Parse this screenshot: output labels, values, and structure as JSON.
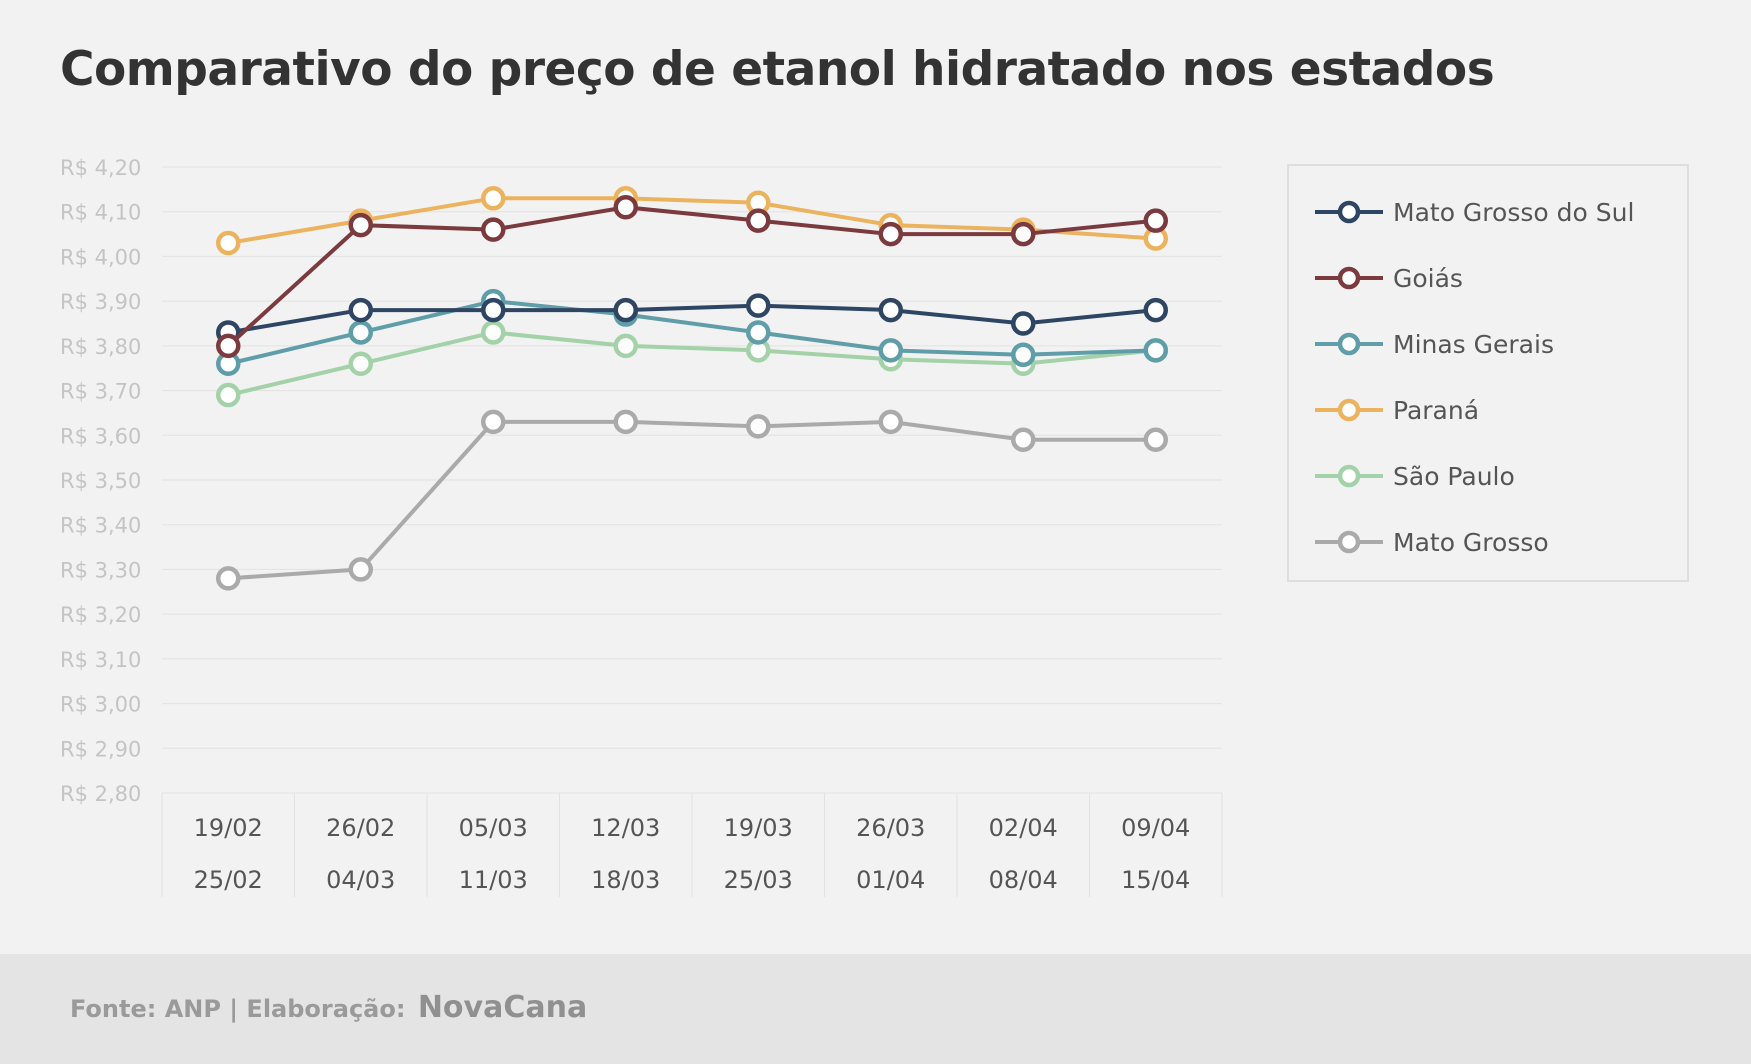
{
  "header": {
    "title": "Comparativo do preço de etanol hidratado nos estados"
  },
  "footer": {
    "source_label": "Fonte: ANP | Elaboração:",
    "brand": "NovaCana"
  },
  "chart_data": {
    "type": "line",
    "title": "Comparativo do preço de etanol hidratado nos estados",
    "xlabel": "",
    "ylabel": "",
    "ylim": [
      2.8,
      4.2
    ],
    "ystep": 0.1,
    "ytick_format": "R$ {v}",
    "grid": true,
    "legend_position": "right",
    "categories": [
      [
        "19/02",
        "25/02"
      ],
      [
        "26/02",
        "04/03"
      ],
      [
        "05/03",
        "11/03"
      ],
      [
        "12/03",
        "18/03"
      ],
      [
        "19/03",
        "25/03"
      ],
      [
        "26/03",
        "01/04"
      ],
      [
        "02/04",
        "08/04"
      ],
      [
        "09/04",
        "15/04"
      ]
    ],
    "series": [
      {
        "name": "Mato Grosso",
        "color": "#aaaaaa",
        "values": [
          3.28,
          3.3,
          3.63,
          3.63,
          3.62,
          3.63,
          3.59,
          3.59
        ]
      },
      {
        "name": "São Paulo",
        "color": "#a3d1a8",
        "values": [
          3.69,
          3.76,
          3.83,
          3.8,
          3.79,
          3.77,
          3.76,
          3.79
        ]
      },
      {
        "name": "Minas Gerais",
        "color": "#5f9ea8",
        "values": [
          3.76,
          3.83,
          3.9,
          3.87,
          3.83,
          3.79,
          3.78,
          3.79
        ]
      },
      {
        "name": "Mato Grosso do Sul",
        "color": "#2e4563",
        "values": [
          3.83,
          3.88,
          3.88,
          3.88,
          3.89,
          3.88,
          3.85,
          3.88
        ]
      },
      {
        "name": "Paraná",
        "color": "#ecb35e",
        "values": [
          4.03,
          4.08,
          4.13,
          4.13,
          4.12,
          4.07,
          4.06,
          4.04
        ]
      },
      {
        "name": "Goiás",
        "color": "#7b3a3e",
        "values": [
          3.8,
          4.07,
          4.06,
          4.11,
          4.08,
          4.05,
          4.05,
          4.08
        ]
      }
    ],
    "legend_order": [
      "Mato Grosso do Sul",
      "Goiás",
      "Minas Gerais",
      "Paraná",
      "São Paulo",
      "Mato Grosso"
    ]
  }
}
